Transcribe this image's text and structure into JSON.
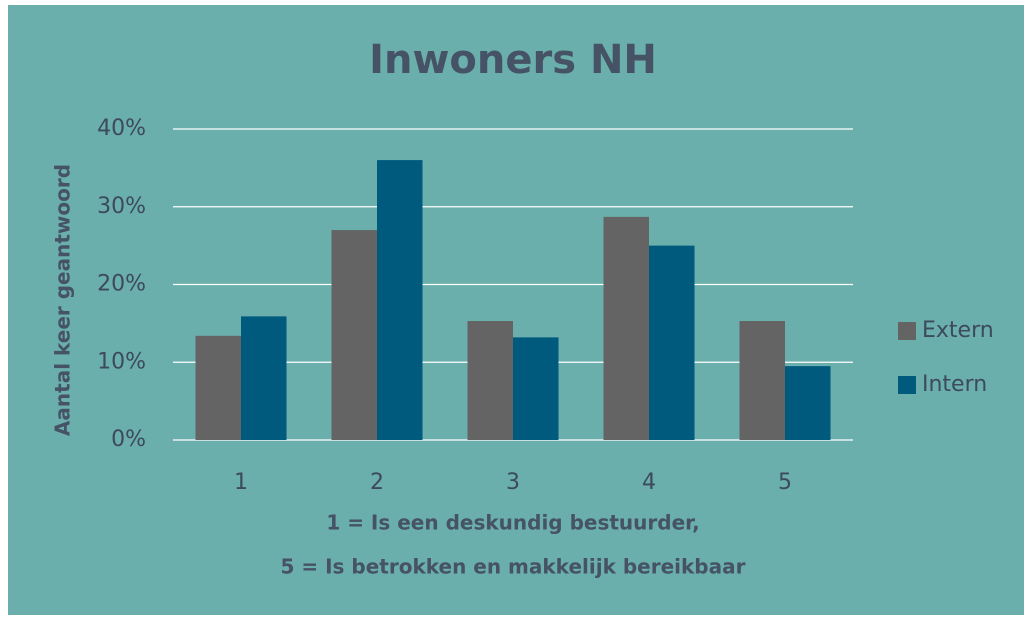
{
  "chart_data": {
    "type": "bar",
    "title": "Inwoners NH",
    "ylabel": "Aantal keer geantwoord",
    "xlabel": [
      "1 = Is een deskundig bestuurder,",
      "5 = Is betrokken en makkelijk bereikbaar"
    ],
    "categories": [
      "1",
      "2",
      "3",
      "4",
      "5"
    ],
    "series": [
      {
        "name": "Extern",
        "color": "#646464",
        "values": [
          13.4,
          27.0,
          15.3,
          28.7,
          15.3
        ]
      },
      {
        "name": "Intern",
        "color": "#005a7e",
        "values": [
          15.9,
          36.0,
          13.2,
          25.0,
          9.5
        ]
      }
    ],
    "ylim": [
      0,
      40
    ],
    "yticks": [
      {
        "value": 0,
        "label": "0%"
      },
      {
        "value": 10,
        "label": "10%"
      },
      {
        "value": 20,
        "label": "20%"
      },
      {
        "value": 30,
        "label": "30%"
      },
      {
        "value": 40,
        "label": "40%"
      }
    ],
    "grid": true,
    "legend": "right"
  }
}
